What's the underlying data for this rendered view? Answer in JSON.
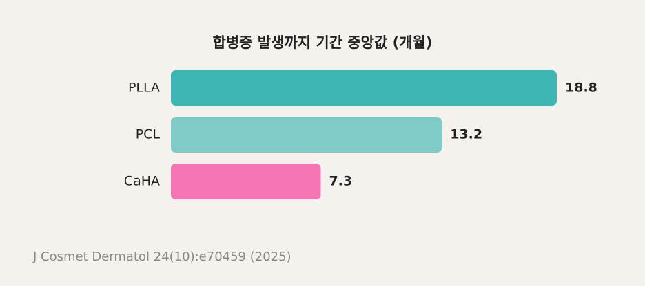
{
  "chart_data": {
    "type": "bar",
    "orientation": "horizontal",
    "title": "합병증 발생까지 기간 중앙값 (개월)",
    "categories": [
      "PLLA",
      "PCL",
      "CaHA"
    ],
    "values": [
      18.8,
      13.2,
      7.3
    ],
    "colors": [
      "#3db5b3",
      "#80cbc8",
      "#f575b5"
    ],
    "source": "J Cosmet Dermatol 24(10):e70459 (2025)"
  }
}
